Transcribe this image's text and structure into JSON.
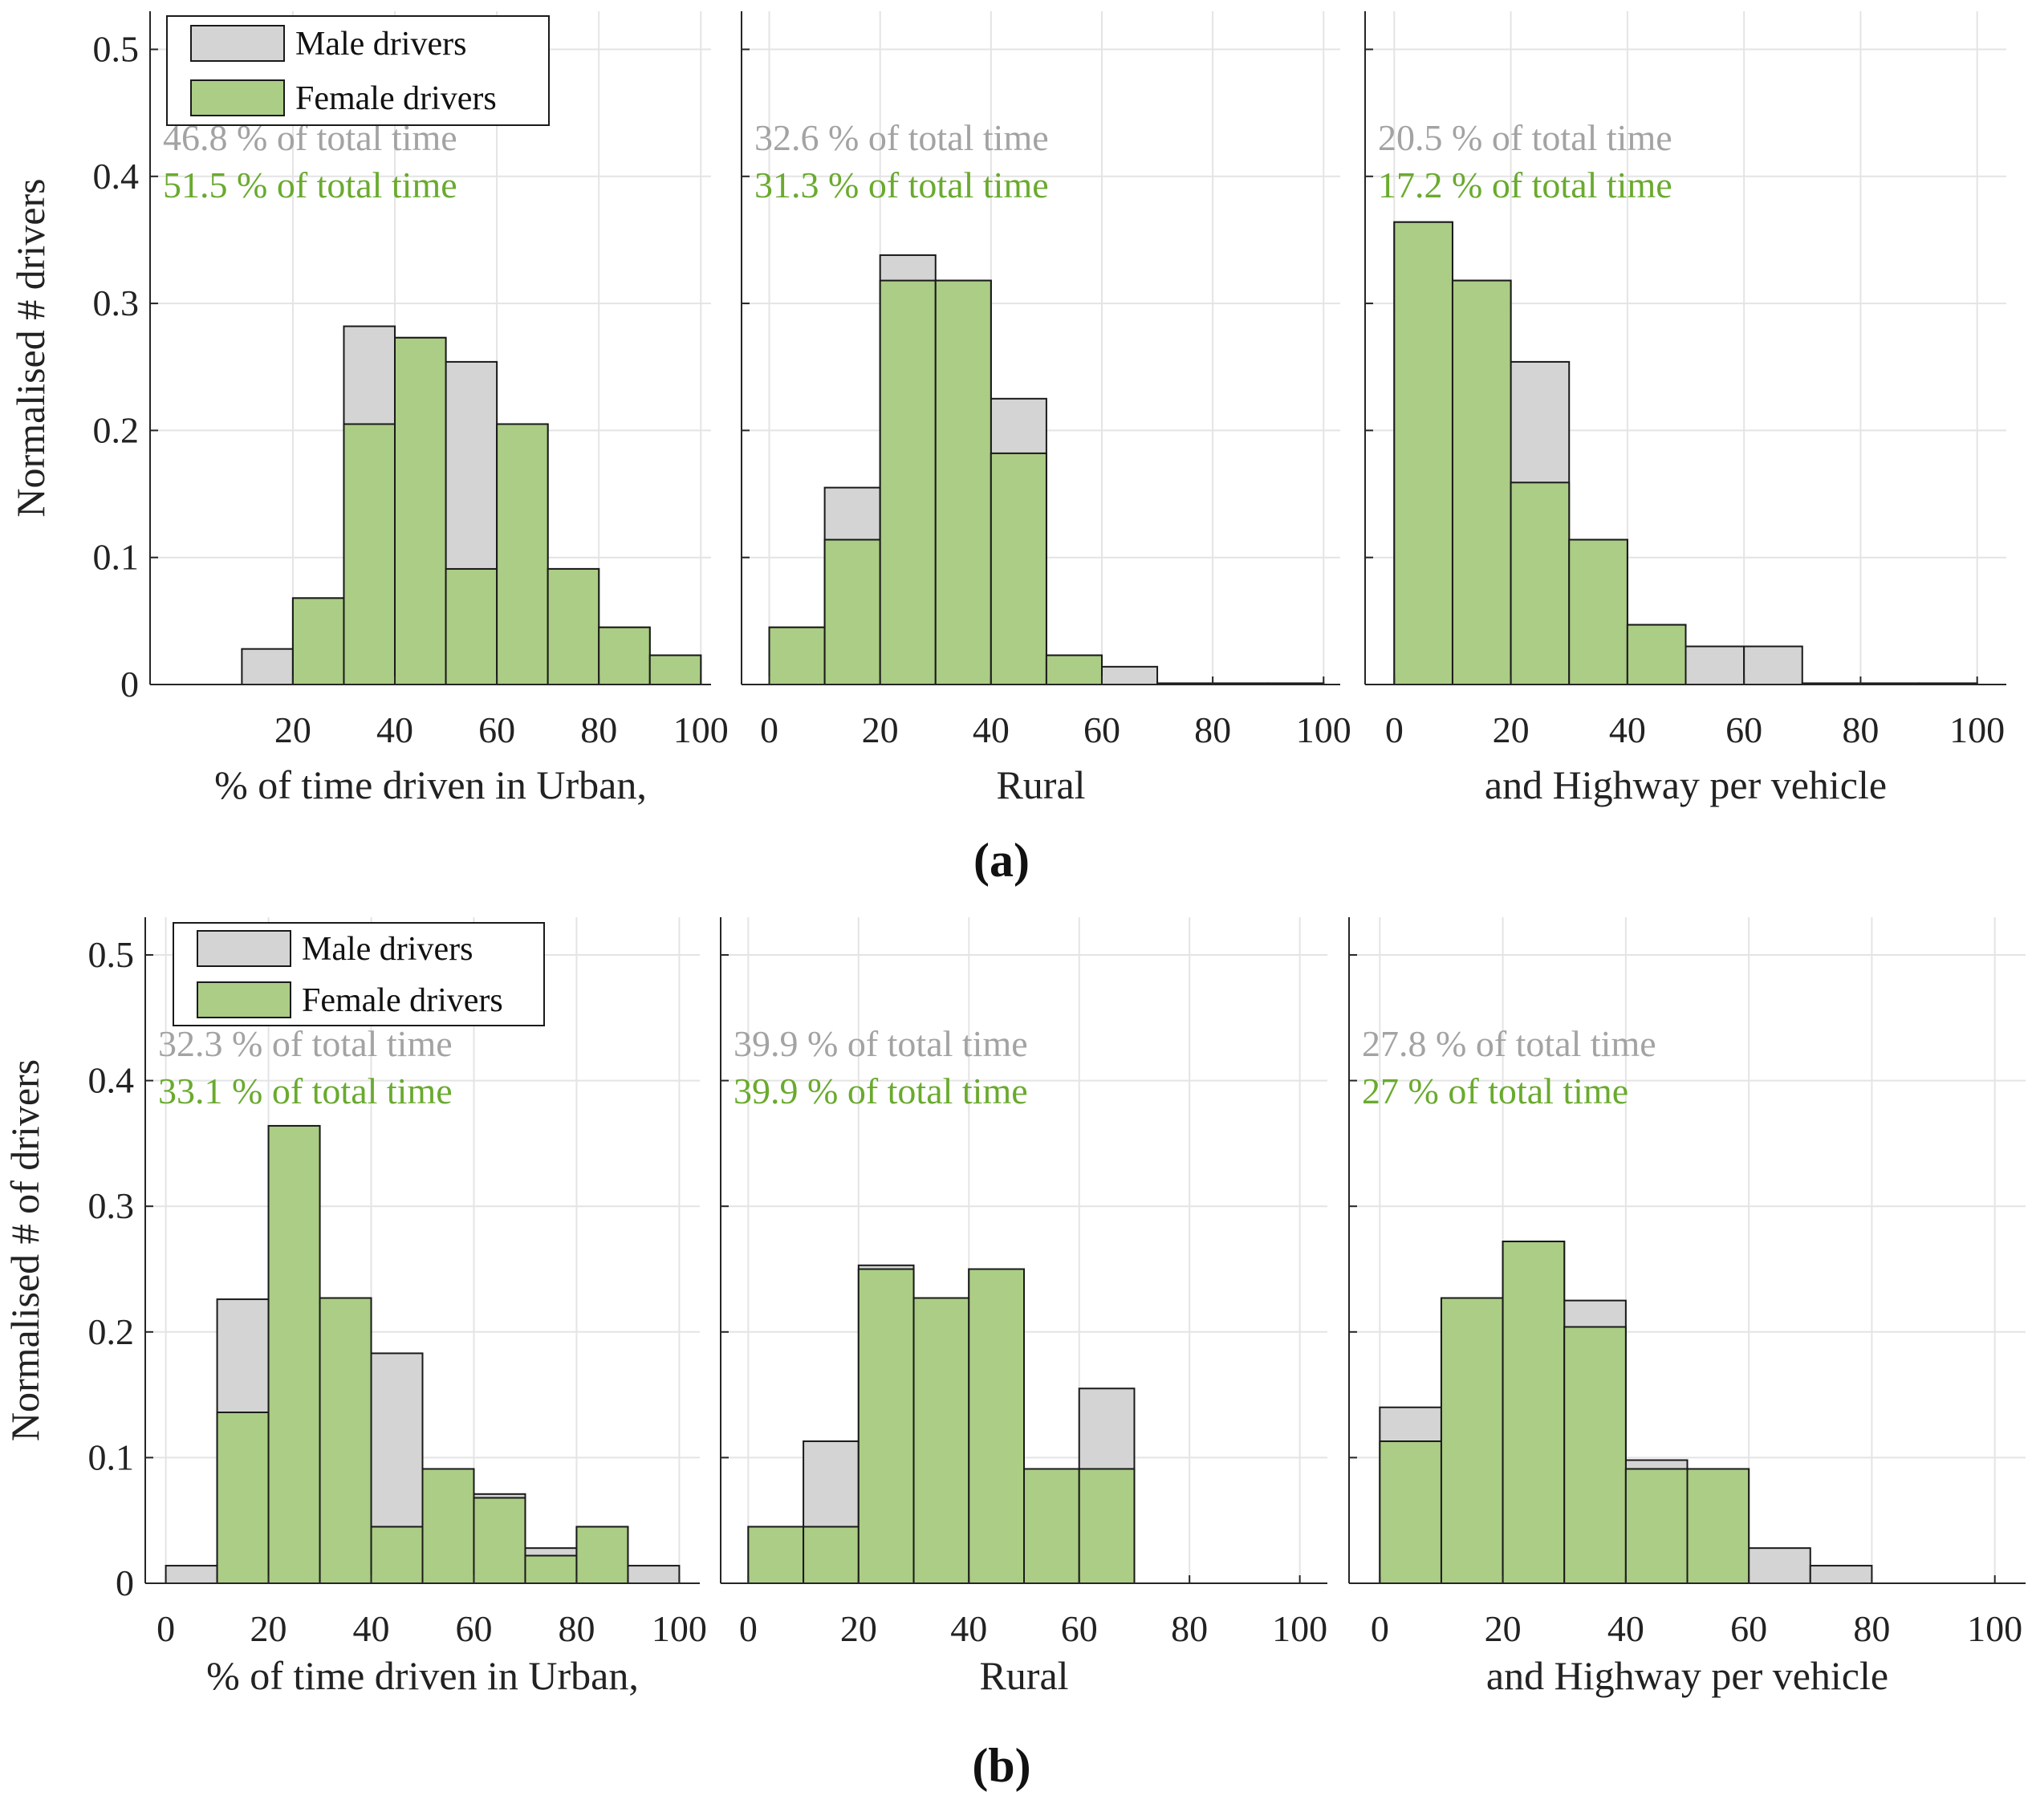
{
  "chart_data": [
    {
      "figure_label": "(a)",
      "ylabel": "Normalised # drivers",
      "ylim": [
        0,
        0.53
      ],
      "yticks": [
        0,
        0.1,
        0.2,
        0.3,
        0.4,
        0.5
      ],
      "ytick_labels": [
        "0",
        "0.1",
        "0.2",
        "0.3",
        "0.4",
        "0.5"
      ],
      "legend": {
        "position": "top-left",
        "entries": [
          "Male drivers",
          "Female drivers"
        ]
      },
      "colors": {
        "male": "#d4d4d4",
        "female": "#abcd85",
        "male_text": "#a3a3a3",
        "female_text": "#6aaa2e"
      },
      "panels": [
        {
          "type": "bar",
          "title": "Urban",
          "xlabel": "% of time driven in Urban,",
          "xlim": [
            -8,
            102
          ],
          "xticks": [
            20,
            40,
            60,
            80,
            100
          ],
          "xtick_labels": [
            "20",
            "40",
            "60",
            "80",
            "100"
          ],
          "bin_edges": [
            10,
            20,
            30,
            40,
            50,
            60,
            70,
            80,
            90,
            100
          ],
          "series": [
            {
              "name": "Male drivers",
              "values": [
                0.028,
                0.068,
                0.282,
                0.273,
                0.254,
                0.205,
                0.091,
                0.045,
                0.023
              ]
            },
            {
              "name": "Female drivers",
              "values": [
                0,
                0.068,
                0.205,
                0.273,
                0.091,
                0.205,
                0.091,
                0.045,
                0.023
              ]
            }
          ],
          "annotation_male": "46.8 % of total time",
          "annotation_female": "51.5 % of total time"
        },
        {
          "type": "bar",
          "title": "Rural",
          "xlabel": "Rural",
          "xlim": [
            -5,
            103
          ],
          "xticks": [
            0,
            20,
            40,
            60,
            80,
            100
          ],
          "xtick_labels": [
            "0",
            "20",
            "40",
            "60",
            "80",
            "100"
          ],
          "bin_edges": [
            0,
            10,
            20,
            30,
            40,
            50,
            60,
            70,
            80,
            90,
            100
          ],
          "series": [
            {
              "name": "Male drivers",
              "values": [
                0.045,
                0.155,
                0.338,
                0.318,
                0.225,
                0.023,
                0.014,
                0.001,
                0.001,
                0.001
              ]
            },
            {
              "name": "Female drivers",
              "values": [
                0.045,
                0.114,
                0.318,
                0.318,
                0.182,
                0.023,
                0,
                0,
                0,
                0
              ]
            }
          ],
          "annotation_male": "32.6 % of total time",
          "annotation_female": "31.3 % of total time"
        },
        {
          "type": "bar",
          "title": "Highway",
          "xlabel": "and Highway per vehicle",
          "xlim": [
            -5,
            105
          ],
          "xticks": [
            0,
            20,
            40,
            60,
            80,
            100
          ],
          "xtick_labels": [
            "0",
            "20",
            "40",
            "60",
            "80",
            "100"
          ],
          "bin_edges": [
            0,
            10,
            20,
            30,
            40,
            50,
            60,
            70,
            80,
            90,
            100
          ],
          "series": [
            {
              "name": "Male drivers",
              "values": [
                0.364,
                0.318,
                0.254,
                0.114,
                0.047,
                0.03,
                0.03,
                0.001,
                0.001,
                0.001
              ]
            },
            {
              "name": "Female drivers",
              "values": [
                0.364,
                0.318,
                0.159,
                0.114,
                0.047,
                0,
                0,
                0,
                0,
                0
              ]
            }
          ],
          "annotation_male": "20.5 % of total time",
          "annotation_female": "17.2 % of total time"
        }
      ]
    },
    {
      "figure_label": "(b)",
      "ylabel": "Normalised # of drivers",
      "ylim": [
        0,
        0.53
      ],
      "yticks": [
        0,
        0.1,
        0.2,
        0.3,
        0.4,
        0.5
      ],
      "ytick_labels": [
        "0",
        "0.1",
        "0.2",
        "0.3",
        "0.4",
        "0.5"
      ],
      "legend": {
        "position": "top-left",
        "entries": [
          "Male drivers",
          "Female drivers"
        ]
      },
      "colors": {
        "male": "#d4d4d4",
        "female": "#abcd85",
        "male_text": "#a3a3a3",
        "female_text": "#6aaa2e"
      },
      "panels": [
        {
          "type": "bar",
          "title": "Urban",
          "xlabel": "% of time driven in Urban,",
          "xlim": [
            -4,
            104
          ],
          "xticks": [
            0,
            20,
            40,
            60,
            80,
            100
          ],
          "xtick_labels": [
            "0",
            "20",
            "40",
            "60",
            "80",
            "100"
          ],
          "bin_edges": [
            0,
            10,
            20,
            30,
            40,
            50,
            60,
            70,
            80,
            90,
            100
          ],
          "series": [
            {
              "name": "Male drivers",
              "values": [
                0.014,
                0.226,
                0.364,
                0.227,
                0.183,
                0.091,
                0.071,
                0.028,
                0.045,
                0.014
              ]
            },
            {
              "name": "Female drivers",
              "values": [
                0,
                0.136,
                0.364,
                0.227,
                0.045,
                0.091,
                0.068,
                0.022,
                0.045,
                0
              ]
            }
          ],
          "annotation_male": "32.3 % of total time",
          "annotation_female": "33.1 % of total time"
        },
        {
          "type": "bar",
          "title": "Rural",
          "xlabel": "Rural",
          "xlim": [
            -5,
            105
          ],
          "xticks": [
            0,
            20,
            40,
            60,
            80,
            100
          ],
          "xtick_labels": [
            "0",
            "20",
            "40",
            "60",
            "80",
            "100"
          ],
          "bin_edges": [
            0,
            10,
            20,
            30,
            40,
            50,
            60,
            70
          ],
          "series": [
            {
              "name": "Male drivers",
              "values": [
                0.045,
                0.113,
                0.253,
                0.227,
                0.25,
                0.091,
                0.155
              ]
            },
            {
              "name": "Female drivers",
              "values": [
                0.045,
                0.045,
                0.25,
                0.227,
                0.25,
                0.091,
                0.091
              ]
            }
          ],
          "annotation_male": "39.9 % of total time",
          "annotation_female": "39.9 % of total time"
        },
        {
          "type": "bar",
          "title": "Highway",
          "xlabel": "and Highway per vehicle",
          "xlim": [
            -5,
            105
          ],
          "xticks": [
            0,
            20,
            40,
            60,
            80,
            100
          ],
          "xtick_labels": [
            "0",
            "20",
            "40",
            "60",
            "80",
            "100"
          ],
          "bin_edges": [
            0,
            10,
            20,
            30,
            40,
            50,
            60,
            70,
            80
          ],
          "series": [
            {
              "name": "Male drivers",
              "values": [
                0.14,
                0.227,
                0.272,
                0.225,
                0.098,
                0.091,
                0.028,
                0.014
              ]
            },
            {
              "name": "Female drivers",
              "values": [
                0.113,
                0.227,
                0.272,
                0.204,
                0.091,
                0.091,
                0,
                0
              ]
            }
          ],
          "annotation_male": "27.8 % of total time",
          "annotation_female": "27 % of total time"
        }
      ]
    }
  ]
}
